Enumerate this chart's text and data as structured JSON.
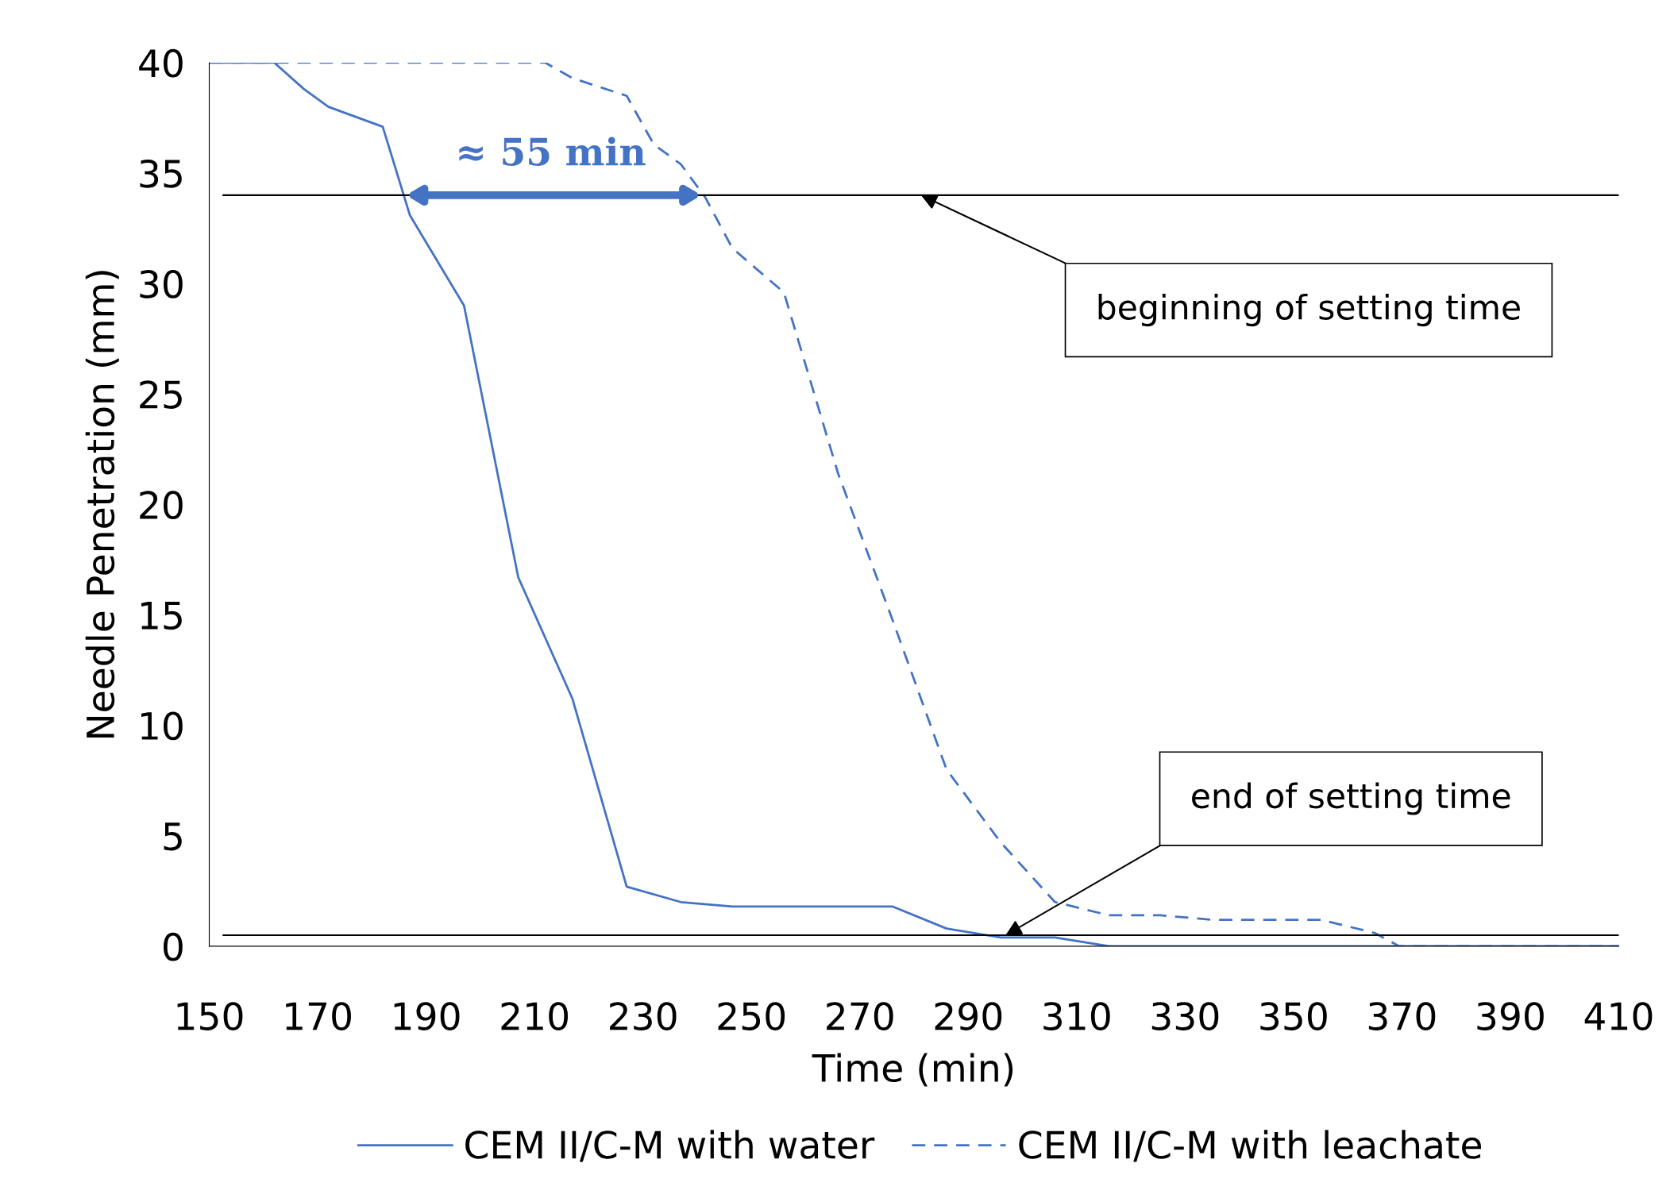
{
  "chart_data": {
    "type": "line",
    "xlabel": "Time (min)",
    "ylabel": "Needle Penetration (mm)",
    "xlim": [
      150,
      410
    ],
    "xticks": [
      150,
      170,
      190,
      210,
      230,
      250,
      270,
      290,
      310,
      330,
      350,
      370,
      390,
      410
    ],
    "ylim": [
      0,
      40
    ],
    "yticks": [
      0,
      5,
      10,
      15,
      20,
      25,
      30,
      35,
      40
    ],
    "grid": false,
    "legend": "bottom",
    "marker": "none",
    "series": [
      {
        "name": "CEM II/C-M with water",
        "color": "#4472c4",
        "line_style": "solid",
        "x": [
          150,
          162,
          167.5,
          172,
          182,
          187,
          197,
          207,
          217,
          227,
          237,
          246.5,
          276,
          286,
          296,
          306,
          316,
          410
        ],
        "values": [
          40,
          40,
          38.8,
          38.0,
          37.1,
          33.1,
          29.0,
          16.7,
          11.2,
          2.7,
          2.0,
          1.8,
          1.8,
          0.8,
          0.4,
          0.4,
          0,
          0
        ]
      },
      {
        "name": "CEM II/C-M with leachate",
        "color": "#4472c4",
        "line_style": "dashed",
        "x": [
          150,
          212,
          217,
          227,
          232,
          237,
          241.5,
          246.5,
          256,
          266,
          276,
          286,
          296,
          306,
          316,
          325.5,
          335,
          355,
          365,
          369.5,
          410
        ],
        "values": [
          40,
          40,
          39.3,
          38.5,
          36.3,
          35.4,
          33.9,
          31.6,
          29.6,
          21.4,
          14.8,
          8.0,
          4.7,
          2.0,
          1.4,
          1.4,
          1.2,
          1.2,
          0.6,
          0,
          0
        ]
      }
    ],
    "ref_lines": [
      {
        "axis": "y",
        "value": 34,
        "color": "#000000",
        "line_style": "solid"
      },
      {
        "axis": "y",
        "value": 0.5,
        "color": "#000000",
        "line_style": "solid"
      }
    ],
    "annotations": [
      {
        "text": "≈ 55 min",
        "x": 213,
        "y": 34
      },
      "beginning of setting time",
      "end of setting time"
    ]
  }
}
